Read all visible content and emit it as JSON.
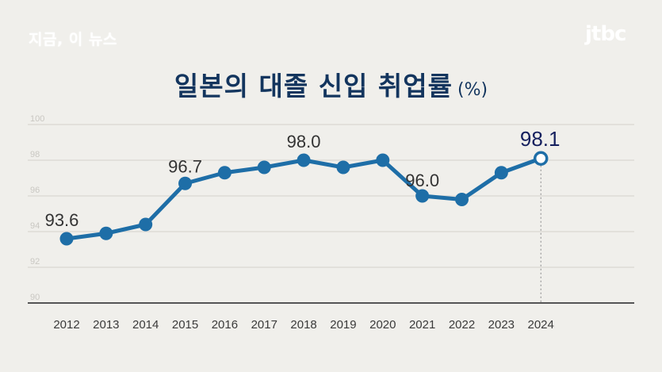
{
  "header": {
    "program_name": "지금, 이 뉴스",
    "broadcaster_logo": "jtbc"
  },
  "colors": {
    "background": "#f0efeb",
    "line": "#1e6ea7",
    "title": "#13355e",
    "highlight_label": "#15205e"
  },
  "chart_data": {
    "type": "line",
    "title": "일본의 대졸 신입 취업률",
    "unit_label": "(%)",
    "xlabel": "",
    "ylabel": "",
    "ylim": [
      90,
      100
    ],
    "yticks": [
      "90",
      "92",
      "94",
      "96",
      "98",
      "100"
    ],
    "grid": true,
    "categories": [
      "2012",
      "2013",
      "2014",
      "2015",
      "2016",
      "2017",
      "2018",
      "2019",
      "2020",
      "2021",
      "2022",
      "2023",
      "2024"
    ],
    "series": [
      {
        "name": "대졸 신입 취업률",
        "values": [
          93.6,
          93.9,
          94.4,
          96.7,
          97.3,
          97.6,
          98.0,
          97.6,
          98.0,
          96.0,
          95.8,
          97.3,
          98.1
        ]
      }
    ],
    "data_labels": [
      {
        "year": "2012",
        "text": "93.6"
      },
      {
        "year": "2015",
        "text": "96.7"
      },
      {
        "year": "2018",
        "text": "98.0"
      },
      {
        "year": "2021",
        "text": "96.0"
      },
      {
        "year": "2024",
        "text": "98.1",
        "highlight": true
      }
    ]
  }
}
